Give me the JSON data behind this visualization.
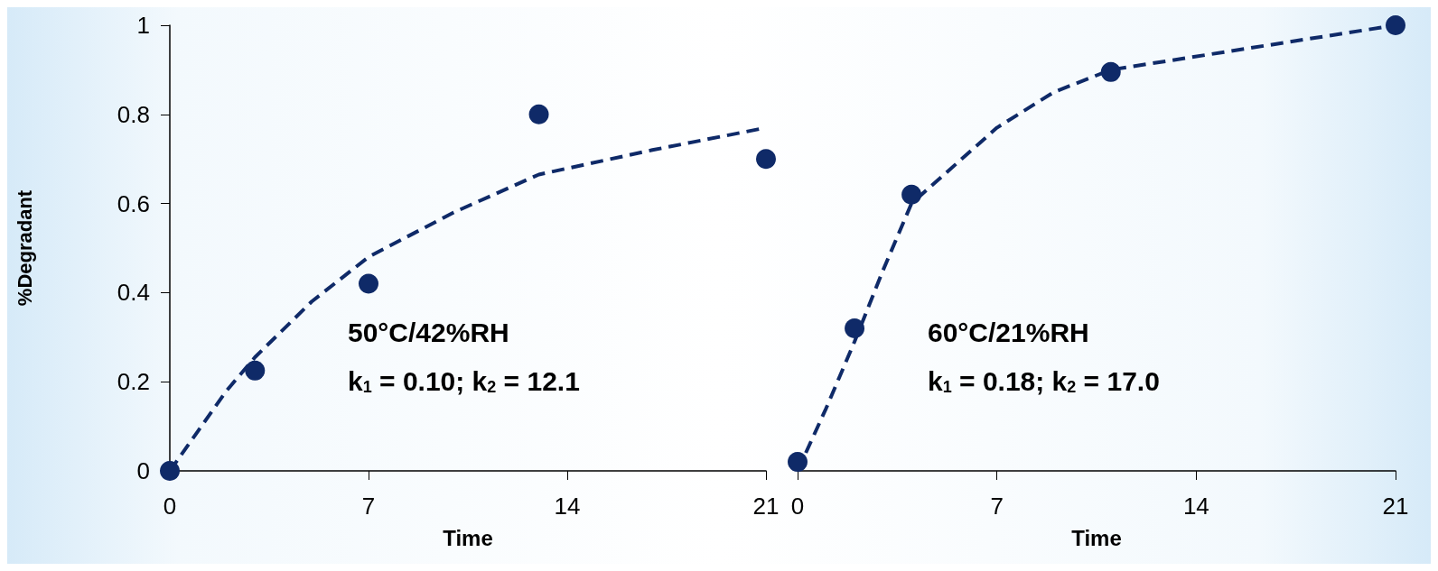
{
  "chart_data": [
    {
      "type": "scatter",
      "xlabel": "Time",
      "ylabel": "%Degradant",
      "xlim": [
        0,
        21
      ],
      "xticks": [
        0,
        7,
        14,
        21
      ],
      "ylim": [
        0,
        1
      ],
      "yticks": [
        0,
        0.2,
        0.4,
        0.6,
        0.8,
        1
      ],
      "grid": false,
      "annotations": [
        "50°C/42%RH",
        "k$_{1}$ = 0.10; k$_{2}$ = 12.1"
      ],
      "series": [
        {
          "marker": "circle",
          "color": "#0f2a68",
          "x": [
            0,
            3,
            7,
            13,
            21
          ],
          "values": [
            0,
            0.225,
            0.42,
            0.8,
            0.7
          ]
        },
        {
          "type": "line",
          "marker": "none",
          "line_style": "dashed",
          "color": "#0f2a68",
          "x": [
            0,
            1,
            2,
            3,
            5,
            7,
            10,
            13,
            17,
            21
          ],
          "values": [
            0,
            0.09,
            0.18,
            0.255,
            0.38,
            0.48,
            0.58,
            0.665,
            0.72,
            0.77
          ]
        }
      ]
    },
    {
      "type": "scatter",
      "xlabel": "Time",
      "xlim": [
        0,
        21
      ],
      "xticks": [
        0,
        7,
        14,
        21
      ],
      "ylim": [
        0,
        1
      ],
      "yticks": [
        0,
        0.2,
        0.4,
        0.6,
        0.8,
        1
      ],
      "grid": false,
      "tick_labels": "x",
      "annotations": [
        "60°C/21%RH",
        "k$_{1}$ = 0.18; k$_{2}$ = 17.0"
      ],
      "series": [
        {
          "marker": "circle",
          "color": "#0f2a68",
          "x": [
            0,
            2,
            4,
            11,
            21
          ],
          "values": [
            0.02,
            0.32,
            0.62,
            0.895,
            1
          ]
        },
        {
          "type": "line",
          "marker": "none",
          "line_style": "dashed",
          "color": "#0f2a68",
          "x": [
            0,
            1,
            2,
            3,
            4,
            7,
            9,
            11,
            15,
            21
          ],
          "values": [
            0,
            0.14,
            0.29,
            0.45,
            0.6,
            0.77,
            0.85,
            0.9,
            0.94,
            1
          ]
        }
      ]
    }
  ]
}
